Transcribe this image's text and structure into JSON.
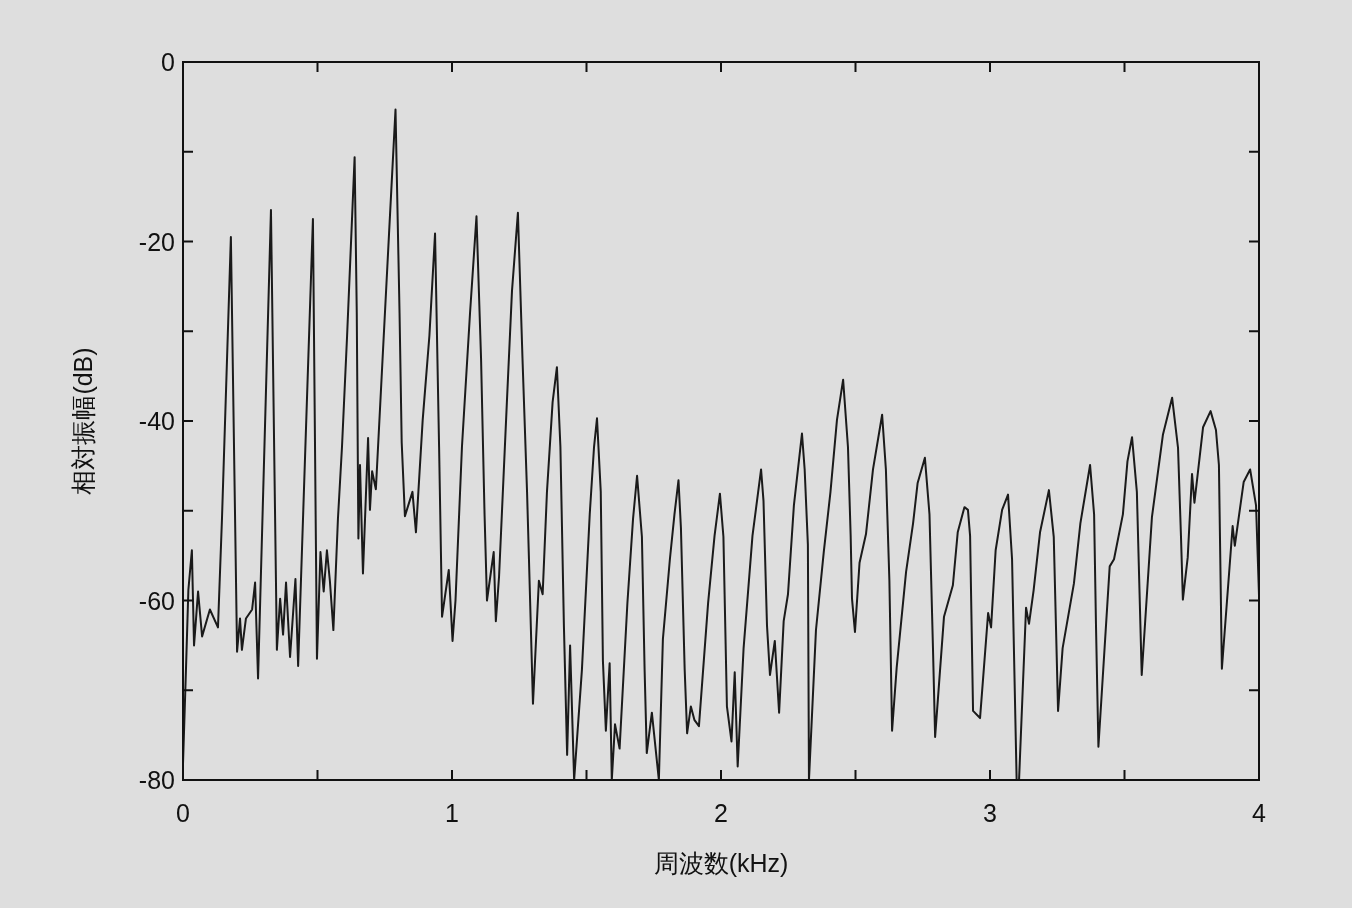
{
  "chart_data": {
    "type": "line",
    "xlabel": "周波数(kHz)",
    "ylabel": "相対振幅(dB)",
    "line_style": "solid",
    "xlim": [
      0,
      4
    ],
    "ylim": [
      -80,
      0
    ],
    "xticks": [
      0,
      {
        "value": 0.5,
        "label": null
      },
      1,
      {
        "value": 1.5,
        "label": null
      },
      2,
      {
        "value": 2.5,
        "label": null
      },
      3,
      {
        "value": 3.5,
        "label": null
      },
      4
    ],
    "yticks": [
      0,
      {
        "value": -10,
        "label": null
      },
      -20,
      {
        "value": -30,
        "label": null
      },
      -40,
      {
        "value": -50,
        "label": null
      },
      -60,
      {
        "value": -70,
        "label": null
      },
      -80
    ],
    "x": [
      0,
      0.011,
      0.02,
      0.033,
      0.041,
      0.056,
      0.071,
      0.1,
      0.13,
      0.145,
      0.178,
      0.201,
      0.212,
      0.219,
      0.234,
      0.257,
      0.268,
      0.279,
      0.327,
      0.349,
      0.361,
      0.372,
      0.383,
      0.398,
      0.418,
      0.428,
      0.483,
      0.498,
      0.511,
      0.523,
      0.535,
      0.546,
      0.559,
      0.576,
      0.591,
      0.61,
      0.638,
      0.646,
      0.652,
      0.658,
      0.669,
      0.688,
      0.695,
      0.703,
      0.717,
      0.742,
      0.766,
      0.79,
      0.805,
      0.813,
      0.825,
      0.853,
      0.866,
      0.891,
      0.916,
      0.937,
      0.952,
      0.963,
      0.988,
      1.002,
      1.013,
      1.037,
      1.067,
      1.091,
      1.108,
      1.121,
      1.13,
      1.155,
      1.163,
      1.175,
      1.204,
      1.223,
      1.245,
      1.262,
      1.279,
      1.286,
      1.301,
      1.323,
      1.337,
      1.353,
      1.374,
      1.39,
      1.403,
      1.416,
      1.428,
      1.439,
      1.454,
      1.483,
      1.512,
      1.528,
      1.539,
      1.553,
      1.561,
      1.572,
      1.586,
      1.594,
      1.606,
      1.623,
      1.652,
      1.673,
      1.688,
      1.706,
      1.716,
      1.724,
      1.743,
      1.769,
      1.784,
      1.81,
      1.827,
      1.842,
      1.851,
      1.865,
      1.874,
      1.888,
      1.901,
      1.918,
      1.952,
      1.976,
      1.996,
      2.009,
      2.022,
      2.039,
      2.051,
      2.062,
      2.084,
      2.117,
      2.149,
      2.158,
      2.171,
      2.182,
      2.2,
      2.216,
      2.233,
      2.249,
      2.271,
      2.301,
      2.311,
      2.323,
      2.327,
      2.353,
      2.382,
      2.407,
      2.431,
      2.454,
      2.472,
      2.482,
      2.487,
      2.498,
      2.515,
      2.539,
      2.565,
      2.599,
      2.613,
      2.626,
      2.636,
      2.653,
      2.688,
      2.714,
      2.731,
      2.758,
      2.775,
      2.788,
      2.796,
      2.829,
      2.862,
      2.88,
      2.905,
      2.918,
      2.926,
      2.937,
      2.963,
      2.993,
      3.004,
      3.021,
      3.045,
      3.067,
      3.082,
      3.099,
      3.108,
      3.134,
      3.145,
      3.162,
      3.186,
      3.219,
      3.237,
      3.253,
      3.27,
      3.312,
      3.336,
      3.372,
      3.387,
      3.394,
      3.403,
      3.445,
      3.461,
      3.494,
      3.511,
      3.528,
      3.546,
      3.564,
      3.602,
      3.643,
      3.677,
      3.699,
      3.71,
      3.717,
      3.735,
      3.751,
      3.76,
      3.792,
      3.82,
      3.84,
      3.851,
      3.862,
      3.902,
      3.91,
      3.943,
      3.967,
      3.989,
      4.0
    ],
    "series": [
      {
        "color": "#1a1a1a",
        "values": [
          -78.2,
          -67.7,
          -58.8,
          -54.4,
          -65,
          -59,
          -64,
          -61,
          -63,
          -50.8,
          -19.5,
          -65.7,
          -62,
          -65.5,
          -62,
          -61,
          -58,
          -68.7,
          -16.5,
          -65.5,
          -59.8,
          -63.8,
          -58,
          -66.3,
          -57.6,
          -67.3,
          -17.5,
          -66.5,
          -54.6,
          -59,
          -54.4,
          -57.8,
          -63.3,
          -50.9,
          -42.9,
          -30.5,
          -10.6,
          -28,
          -53.1,
          -44.9,
          -57,
          -41.9,
          -49.9,
          -45.6,
          -47.6,
          -33,
          -19.1,
          -5.3,
          -28,
          -42.4,
          -50.6,
          -47.9,
          -52.4,
          -39.9,
          -30.5,
          -19.1,
          -42.9,
          -61.8,
          -56.6,
          -64.5,
          -60,
          -42.9,
          -28,
          -17.2,
          -33,
          -50.4,
          -60,
          -54.6,
          -62.3,
          -57.3,
          -37.9,
          -25.5,
          -16.8,
          -33,
          -47.9,
          -55.3,
          -71.5,
          -57.8,
          -59.3,
          -47.9,
          -37.9,
          -34,
          -42.9,
          -62.8,
          -77.2,
          -65,
          -80,
          -67.7,
          -50.4,
          -42.9,
          -39.7,
          -47.9,
          -66.7,
          -74.5,
          -67,
          -80,
          -73.8,
          -76.5,
          -60.3,
          -50.9,
          -46.1,
          -52.9,
          -67.7,
          -77,
          -72.5,
          -80,
          -64.3,
          -55.4,
          -50.4,
          -46.6,
          -51.9,
          -67.7,
          -74.8,
          -71.8,
          -73.3,
          -74,
          -60.3,
          -52.8,
          -48.1,
          -52.9,
          -71.8,
          -75.7,
          -68,
          -78.5,
          -65.3,
          -52.8,
          -45.4,
          -48.9,
          -62.8,
          -68.3,
          -64.5,
          -72.5,
          -62.3,
          -59.3,
          -49.4,
          -41.4,
          -45.4,
          -53.8,
          -80,
          -63.3,
          -54.6,
          -47.9,
          -39.9,
          -35.4,
          -42.9,
          -52.8,
          -59.8,
          -63.5,
          -55.8,
          -52.6,
          -45.4,
          -39.3,
          -45.4,
          -57.8,
          -74.5,
          -67.5,
          -56.8,
          -51.4,
          -46.9,
          -44.1,
          -50.4,
          -65.3,
          -75.2,
          -61.8,
          -58.3,
          -52.4,
          -49.6,
          -49.9,
          -52.8,
          -72.3,
          -73.1,
          -61.4,
          -63,
          -54.4,
          -49.9,
          -48.2,
          -55.4,
          -80,
          -80,
          -60.8,
          -62.6,
          -58.9,
          -52.4,
          -47.7,
          -52.9,
          -72.3,
          -65.3,
          -58.1,
          -51.4,
          -44.9,
          -50.4,
          -62.8,
          -76.3,
          -56.2,
          -55.4,
          -50.4,
          -44.5,
          -41.8,
          -47.9,
          -68.3,
          -50.7,
          -41.5,
          -37.4,
          -43,
          -52.9,
          -59.9,
          -55.2,
          -45.9,
          -49.1,
          -40.7,
          -38.9,
          -41,
          -44.9,
          -67.6,
          -51.7,
          -53.9,
          -46.8,
          -45.4,
          -49.4,
          -59.4
        ]
      }
    ]
  }
}
